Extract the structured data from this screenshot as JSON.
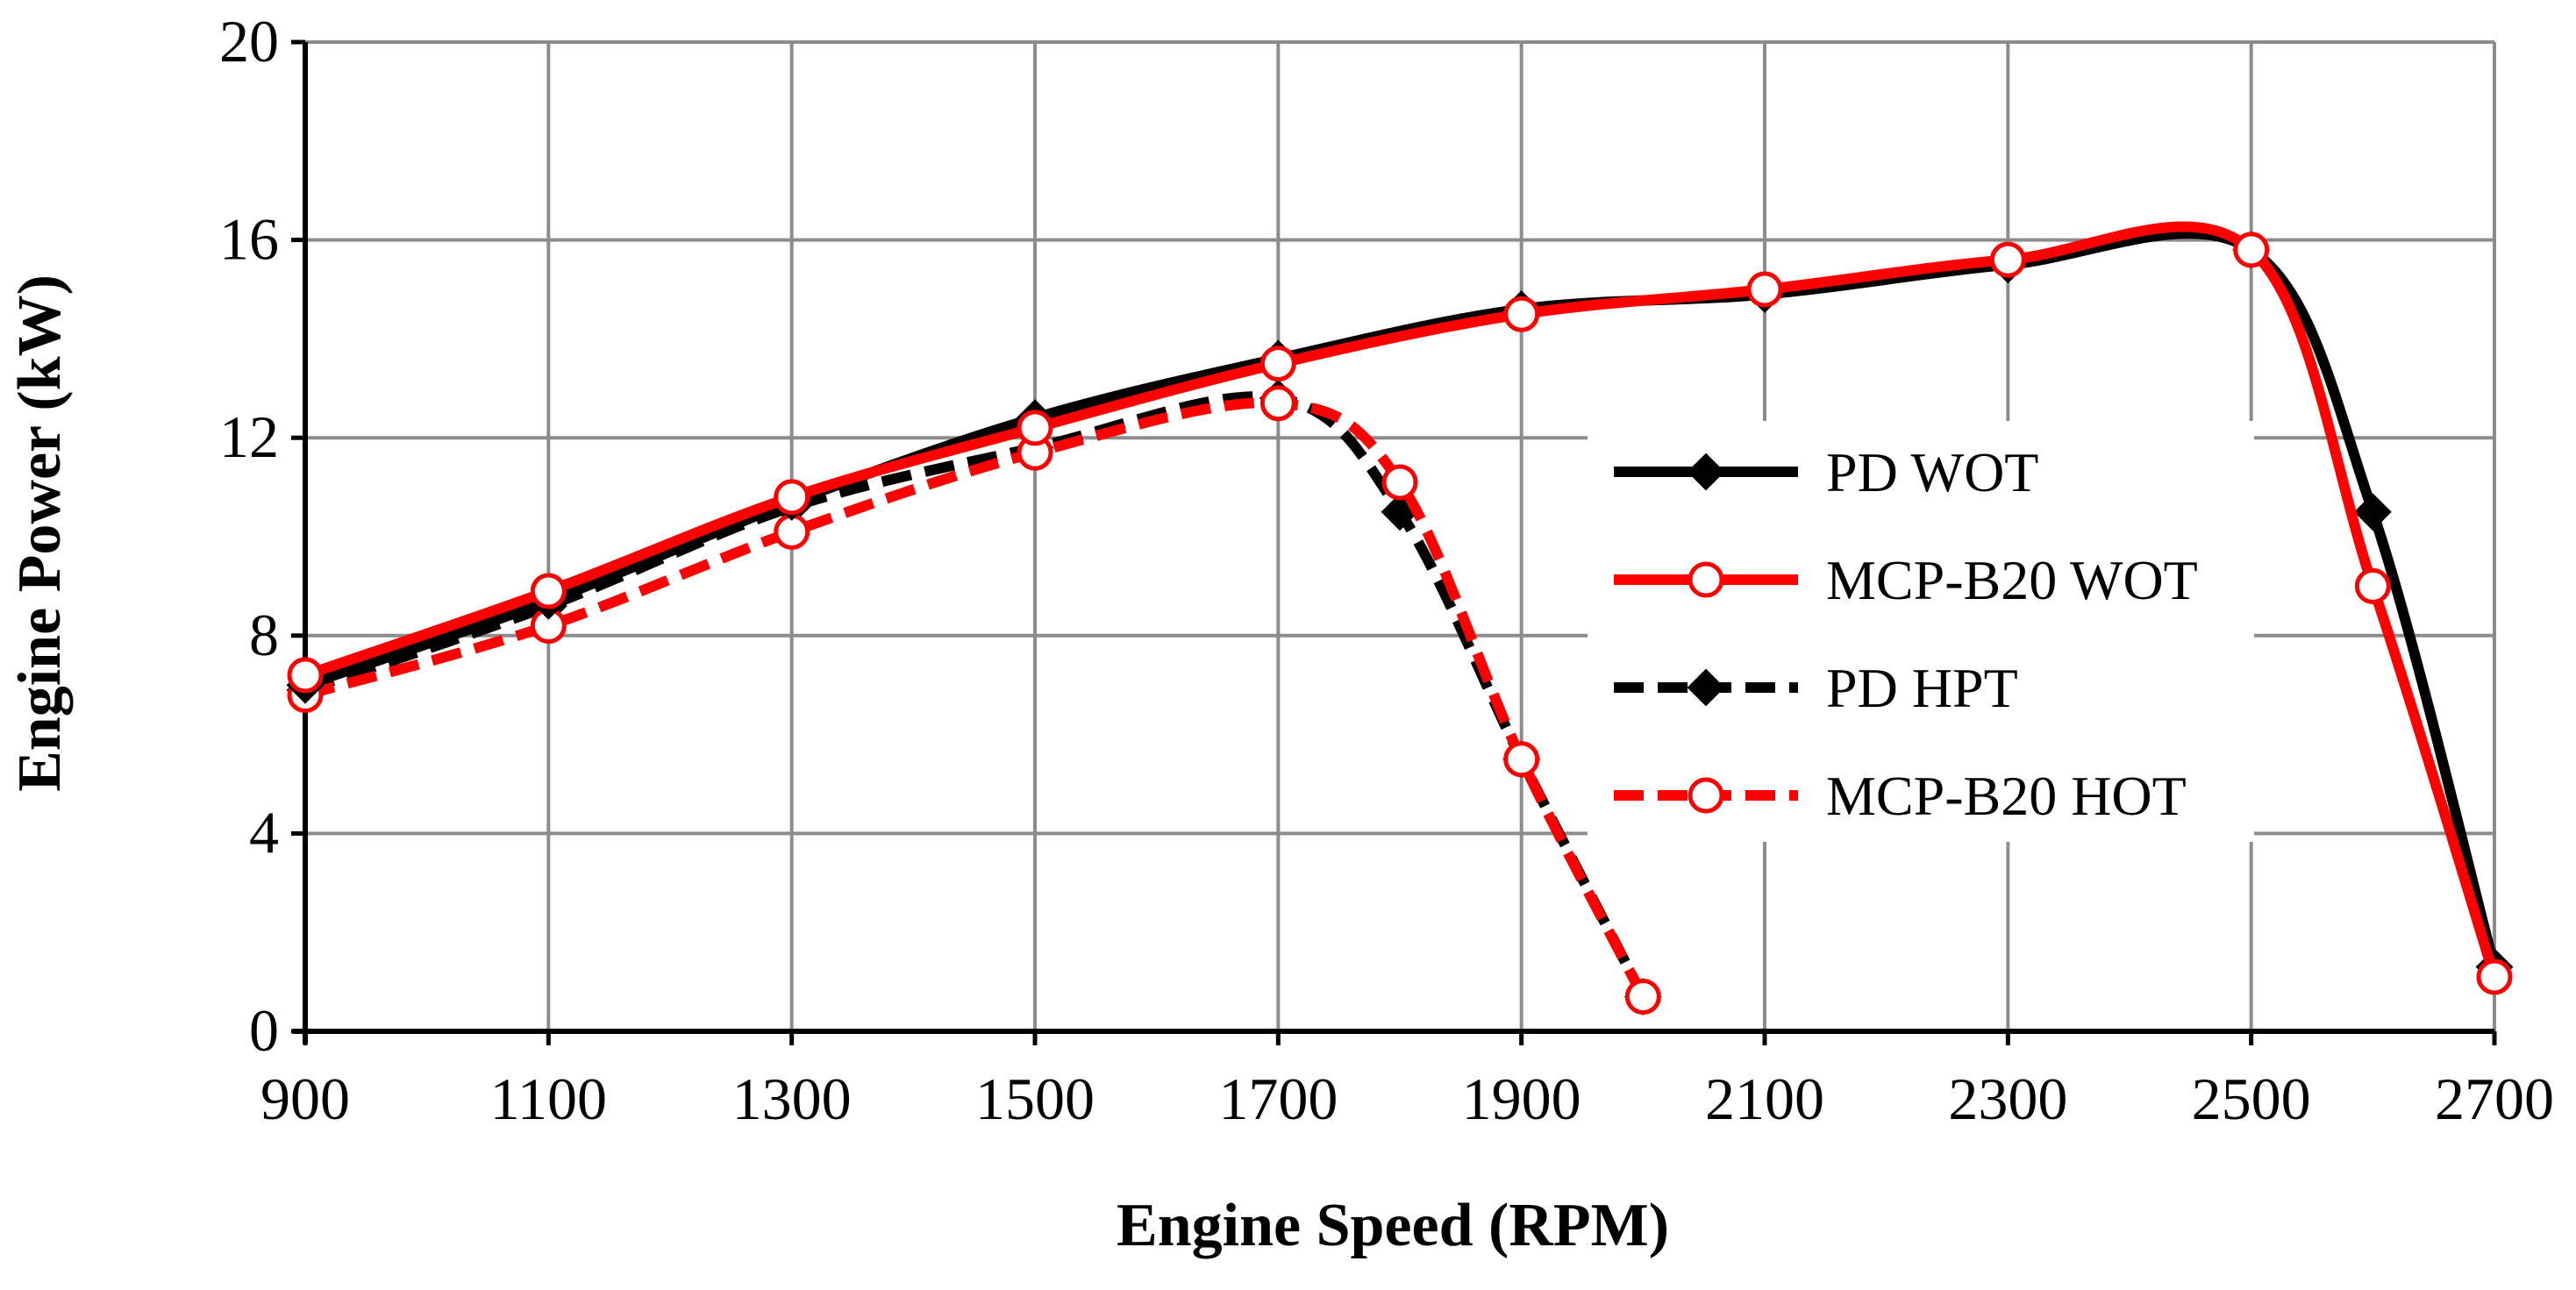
{
  "chart_data": {
    "type": "line",
    "title": "",
    "xlabel": "Engine Speed (RPM)",
    "ylabel": "Engine Power  (kW)",
    "xlim": [
      900,
      2700
    ],
    "ylim": [
      0,
      20
    ],
    "x_ticks": [
      900,
      1100,
      1300,
      1500,
      1700,
      1900,
      2100,
      2300,
      2500,
      2700
    ],
    "y_ticks": [
      0,
      4,
      8,
      12,
      16,
      20
    ],
    "x_tick_labels": [
      "900",
      "1100",
      "1300",
      "1500",
      "1700",
      "1900",
      "2100",
      "2300",
      "2500",
      "2700"
    ],
    "y_tick_labels": [
      "0",
      "4",
      "8",
      "12",
      "16",
      "20"
    ],
    "grid": true,
    "legend_position": "right-center",
    "series": [
      {
        "name": "PD WOT",
        "color": "#000000",
        "line_style": "solid",
        "marker": "diamond",
        "x": [
          900,
          1100,
          1300,
          1500,
          1700,
          1900,
          2100,
          2300,
          2500,
          2600,
          2700
        ],
        "y": [
          7.0,
          8.7,
          10.7,
          12.4,
          13.6,
          14.6,
          14.9,
          15.5,
          15.8,
          10.5,
          1.3
        ]
      },
      {
        "name": "MCP-B20 WOT",
        "color": "#ff0000",
        "line_style": "solid",
        "marker": "open-circle",
        "x": [
          900,
          1100,
          1300,
          1500,
          1700,
          1900,
          2100,
          2300,
          2500,
          2600,
          2700
        ],
        "y": [
          7.2,
          8.9,
          10.8,
          12.2,
          13.5,
          14.5,
          15.0,
          15.6,
          15.8,
          9.0,
          1.1
        ]
      },
      {
        "name": "PD HPT",
        "color": "#000000",
        "line_style": "dashed",
        "marker": "diamond",
        "x": [
          900,
          1100,
          1300,
          1500,
          1700,
          1800,
          1900,
          2000
        ],
        "y": [
          6.9,
          8.6,
          10.6,
          11.8,
          12.8,
          10.5,
          5.5,
          0.7
        ]
      },
      {
        "name": "MCP-B20 HOT",
        "color": "#ff0000",
        "line_style": "dashed",
        "marker": "open-circle",
        "x": [
          900,
          1100,
          1300,
          1500,
          1700,
          1800,
          1900,
          2000
        ],
        "y": [
          6.8,
          8.2,
          10.1,
          11.7,
          12.7,
          11.1,
          5.5,
          0.7
        ]
      }
    ]
  }
}
